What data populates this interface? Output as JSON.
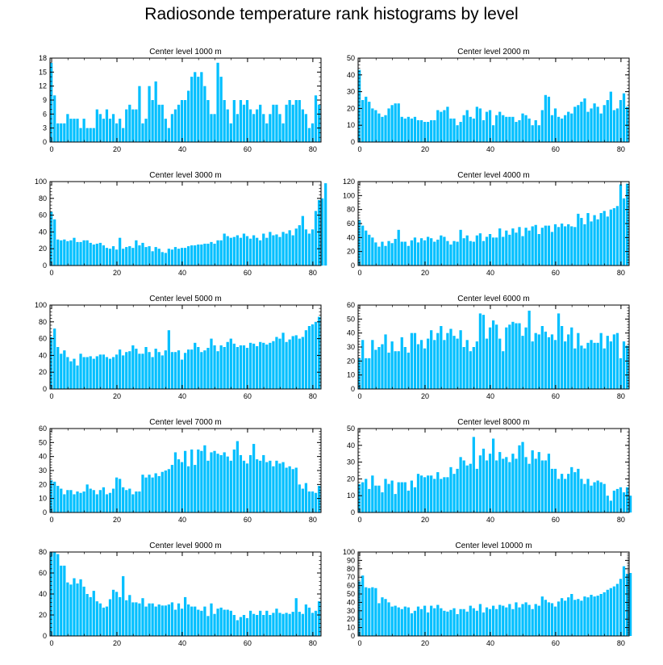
{
  "title": "Radiosonde temperature rank histograms by level",
  "bar_color": "#00bfff",
  "chart_data": [
    {
      "type": "bar",
      "title": "Center level 1000 m",
      "xlim": [
        -0.5,
        82.5
      ],
      "ylim": [
        0,
        18
      ],
      "yticks": [
        0,
        3,
        6,
        9,
        12,
        15,
        18
      ],
      "xticks": [
        0,
        20,
        40,
        60,
        80
      ],
      "values": [
        17,
        10,
        4,
        4,
        4,
        6,
        5,
        5,
        5,
        3,
        5,
        3,
        3,
        3,
        7,
        6,
        5,
        7,
        5,
        6,
        4,
        5,
        3,
        7,
        8,
        7,
        7,
        12,
        4,
        5,
        12,
        9,
        13,
        8,
        8,
        5,
        3,
        6,
        7,
        8,
        9,
        9,
        11,
        14,
        15,
        14,
        15,
        12,
        9,
        6,
        6,
        17,
        14,
        9,
        7,
        4,
        9,
        6,
        9,
        8,
        9,
        7,
        6,
        7,
        8,
        6,
        4,
        6,
        8,
        8,
        6,
        4,
        8,
        9,
        8,
        9,
        9,
        7,
        6,
        3,
        4,
        10,
        8
      ]
    },
    {
      "type": "bar",
      "title": "Center level 2000 m",
      "xlim": [
        -0.5,
        82.5
      ],
      "ylim": [
        0,
        50
      ],
      "yticks": [
        0,
        10,
        20,
        30,
        40,
        50
      ],
      "xticks": [
        0,
        20,
        40,
        60,
        80
      ],
      "values": [
        43,
        25,
        27,
        24,
        20,
        19,
        17,
        15,
        16,
        20,
        22,
        23,
        23,
        15,
        14,
        15,
        14,
        15,
        13,
        13,
        12,
        12,
        13,
        13,
        19,
        18,
        19,
        21,
        14,
        14,
        10,
        12,
        16,
        19,
        15,
        14,
        21,
        20,
        13,
        18,
        19,
        10,
        16,
        18,
        16,
        15,
        15,
        15,
        12,
        13,
        17,
        16,
        14,
        10,
        13,
        10,
        19,
        28,
        27,
        16,
        20,
        15,
        14,
        16,
        18,
        17,
        21,
        22,
        24,
        26,
        18,
        20,
        23,
        21,
        17,
        22,
        25,
        30,
        19,
        20,
        25,
        29,
        21
      ]
    },
    {
      "type": "bar",
      "title": "Center level 3000 m",
      "xlim": [
        -0.5,
        82.5
      ],
      "ylim": [
        0,
        100
      ],
      "yticks": [
        0,
        20,
        40,
        60,
        80,
        100
      ],
      "xticks": [
        0,
        20,
        40,
        60,
        80
      ],
      "values": [
        64,
        55,
        31,
        30,
        31,
        29,
        30,
        33,
        28,
        28,
        30,
        30,
        27,
        25,
        26,
        27,
        24,
        21,
        20,
        23,
        19,
        33,
        20,
        22,
        23,
        21,
        30,
        24,
        27,
        22,
        23,
        17,
        22,
        20,
        16,
        15,
        20,
        19,
        22,
        20,
        21,
        21,
        23,
        24,
        24,
        25,
        25,
        26,
        26,
        28,
        26,
        30,
        30,
        38,
        35,
        33,
        34,
        36,
        33,
        38,
        35,
        32,
        36,
        33,
        30,
        38,
        33,
        40,
        36,
        37,
        34,
        40,
        38,
        42,
        36,
        44,
        48,
        59,
        43,
        38,
        43,
        65,
        78,
        80,
        98
      ]
    },
    {
      "type": "bar",
      "title": "Center level 4000 m",
      "xlim": [
        -0.5,
        82.5
      ],
      "ylim": [
        0,
        120
      ],
      "yticks": [
        0,
        20,
        40,
        60,
        80,
        100,
        120
      ],
      "xticks": [
        0,
        20,
        40,
        60,
        80
      ],
      "values": [
        65,
        57,
        50,
        44,
        40,
        33,
        27,
        34,
        28,
        35,
        32,
        38,
        51,
        34,
        34,
        28,
        36,
        40,
        33,
        39,
        36,
        41,
        39,
        34,
        37,
        43,
        41,
        35,
        30,
        35,
        34,
        51,
        39,
        43,
        35,
        34,
        43,
        46,
        35,
        41,
        45,
        40,
        40,
        53,
        41,
        50,
        44,
        53,
        47,
        55,
        42,
        54,
        50,
        56,
        58,
        45,
        54,
        57,
        57,
        48,
        59,
        55,
        60,
        56,
        59,
        56,
        55,
        74,
        68,
        59,
        75,
        63,
        72,
        66,
        75,
        78,
        70,
        80,
        82,
        85,
        116,
        96,
        117
      ]
    },
    {
      "type": "bar",
      "title": "Center level 5000 m",
      "xlim": [
        -0.5,
        82.5
      ],
      "ylim": [
        0,
        100
      ],
      "yticks": [
        0,
        20,
        40,
        60,
        80,
        100
      ],
      "xticks": [
        0,
        20,
        40,
        60,
        80
      ],
      "values": [
        62,
        72,
        50,
        42,
        46,
        38,
        33,
        36,
        28,
        42,
        38,
        38,
        39,
        36,
        39,
        41,
        41,
        38,
        36,
        38,
        41,
        47,
        40,
        44,
        45,
        52,
        48,
        42,
        42,
        50,
        44,
        38,
        48,
        44,
        40,
        46,
        70,
        44,
        44,
        46,
        35,
        43,
        47,
        47,
        55,
        50,
        44,
        46,
        49,
        60,
        52,
        45,
        52,
        50,
        56,
        60,
        54,
        50,
        52,
        52,
        49,
        55,
        54,
        51,
        56,
        55,
        53,
        55,
        57,
        62,
        60,
        67,
        56,
        59,
        63,
        64,
        60,
        62,
        70,
        75,
        77,
        80,
        86
      ]
    },
    {
      "type": "bar",
      "title": "Center level 6000 m",
      "xlim": [
        -0.5,
        82.5
      ],
      "ylim": [
        0,
        60
      ],
      "yticks": [
        0,
        10,
        20,
        30,
        40,
        50,
        60
      ],
      "xticks": [
        0,
        20,
        40,
        60,
        80
      ],
      "values": [
        22,
        35,
        22,
        22,
        35,
        28,
        30,
        32,
        39,
        26,
        34,
        27,
        27,
        37,
        30,
        26,
        40,
        40,
        32,
        35,
        29,
        36,
        42,
        35,
        40,
        45,
        35,
        40,
        43,
        38,
        36,
        42,
        30,
        35,
        27,
        30,
        34,
        54,
        53,
        36,
        44,
        49,
        46,
        36,
        27,
        44,
        46,
        48,
        47,
        47,
        38,
        44,
        56,
        34,
        40,
        39,
        45,
        41,
        37,
        39,
        35,
        54,
        45,
        34,
        39,
        44,
        29,
        40,
        31,
        29,
        33,
        35,
        33,
        33,
        40,
        29,
        38,
        34,
        39,
        40,
        22,
        34,
        31
      ]
    },
    {
      "type": "bar",
      "title": "Center level 7000 m",
      "xlim": [
        -0.5,
        82.5
      ],
      "ylim": [
        0,
        60
      ],
      "yticks": [
        0,
        10,
        20,
        30,
        40,
        50,
        60
      ],
      "xticks": [
        0,
        20,
        40,
        60,
        80
      ],
      "values": [
        23,
        22,
        19,
        17,
        13,
        16,
        16,
        13,
        15,
        14,
        15,
        20,
        17,
        16,
        13,
        16,
        18,
        13,
        14,
        17,
        25,
        24,
        18,
        16,
        17,
        13,
        15,
        15,
        27,
        25,
        27,
        25,
        28,
        26,
        29,
        30,
        31,
        34,
        43,
        38,
        36,
        44,
        33,
        45,
        34,
        45,
        44,
        48,
        37,
        43,
        44,
        42,
        41,
        43,
        40,
        37,
        45,
        51,
        41,
        37,
        35,
        41,
        49,
        38,
        37,
        41,
        36,
        37,
        33,
        37,
        35,
        36,
        32,
        33,
        31,
        32,
        20,
        17,
        21,
        15,
        15,
        14,
        19
      ]
    },
    {
      "type": "bar",
      "title": "Center level 8000 m",
      "xlim": [
        -0.5,
        82.5
      ],
      "ylim": [
        0,
        50
      ],
      "yticks": [
        0,
        10,
        20,
        30,
        40,
        50
      ],
      "xticks": [
        0,
        20,
        40,
        60,
        80
      ],
      "values": [
        17,
        18,
        20,
        14,
        22,
        16,
        16,
        12,
        20,
        17,
        19,
        11,
        18,
        18,
        18,
        13,
        19,
        15,
        23,
        22,
        21,
        22,
        22,
        20,
        24,
        20,
        21,
        21,
        27,
        23,
        26,
        33,
        31,
        28,
        29,
        45,
        26,
        34,
        38,
        31,
        35,
        44,
        31,
        36,
        32,
        33,
        30,
        35,
        32,
        40,
        42,
        33,
        29,
        37,
        32,
        36,
        31,
        31,
        35,
        26,
        26,
        20,
        23,
        20,
        23,
        27,
        24,
        26,
        20,
        17,
        20,
        16,
        18,
        19,
        18,
        17,
        10,
        7,
        13,
        14,
        15,
        12,
        15,
        10
      ]
    },
    {
      "type": "bar",
      "title": "Center level 9000 m",
      "xlim": [
        -0.5,
        82.5
      ],
      "ylim": [
        0,
        80
      ],
      "yticks": [
        0,
        20,
        40,
        60,
        80
      ],
      "xticks": [
        0,
        20,
        40,
        60,
        80
      ],
      "values": [
        80,
        80,
        78,
        67,
        67,
        51,
        49,
        55,
        50,
        54,
        47,
        40,
        37,
        43,
        33,
        31,
        27,
        28,
        35,
        44,
        42,
        37,
        57,
        34,
        39,
        32,
        32,
        31,
        36,
        28,
        31,
        31,
        28,
        30,
        29,
        29,
        30,
        32,
        25,
        31,
        26,
        37,
        30,
        28,
        28,
        25,
        24,
        28,
        19,
        31,
        21,
        26,
        27,
        25,
        25,
        24,
        20,
        15,
        18,
        20,
        17,
        24,
        21,
        20,
        24,
        20,
        24,
        20,
        22,
        26,
        22,
        21,
        22,
        21,
        23,
        36,
        23,
        21,
        30,
        27,
        22,
        24,
        33
      ]
    },
    {
      "type": "bar",
      "title": "Center level 10000 m",
      "xlim": [
        -0.5,
        82.5
      ],
      "ylim": [
        0,
        100
      ],
      "yticks": [
        0,
        10,
        20,
        30,
        40,
        50,
        60,
        70,
        80,
        90,
        100
      ],
      "xticks": [
        0,
        20,
        40,
        60,
        80
      ],
      "values": [
        65,
        72,
        58,
        57,
        58,
        57,
        39,
        46,
        44,
        40,
        35,
        36,
        34,
        32,
        35,
        34,
        27,
        30,
        35,
        32,
        36,
        28,
        36,
        33,
        37,
        33,
        30,
        29,
        31,
        33,
        26,
        32,
        32,
        29,
        36,
        33,
        30,
        38,
        28,
        34,
        32,
        36,
        32,
        37,
        36,
        34,
        38,
        32,
        40,
        34,
        38,
        40,
        37,
        32,
        38,
        36,
        47,
        43,
        40,
        39,
        35,
        41,
        45,
        42,
        46,
        50,
        43,
        44,
        42,
        47,
        46,
        49,
        47,
        48,
        50,
        52,
        55,
        57,
        59,
        62,
        68,
        83,
        74,
        75
      ]
    }
  ]
}
